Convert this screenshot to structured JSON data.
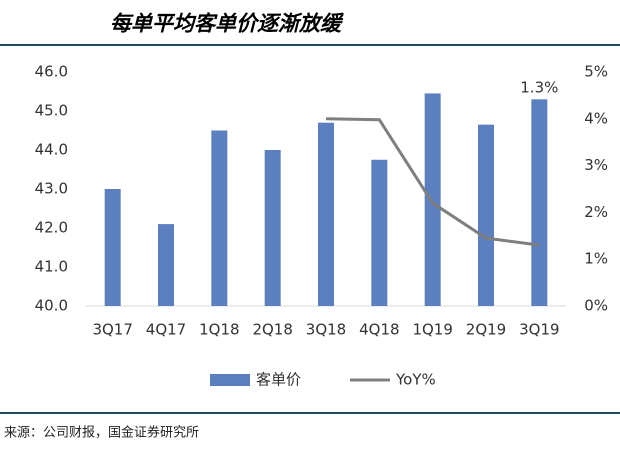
{
  "chart_data": {
    "type": "bar",
    "title": "每单平均客单价逐渐放缓",
    "source": "来源：公司财报，国金证券研究所",
    "categories": [
      "3Q17",
      "4Q17",
      "1Q18",
      "2Q18",
      "3Q18",
      "4Q18",
      "1Q19",
      "2Q19",
      "3Q19"
    ],
    "series": [
      {
        "name": "客单价",
        "type": "bar",
        "color": "#5b7fbf",
        "values": [
          43.0,
          42.1,
          44.5,
          44.0,
          44.7,
          43.75,
          45.45,
          44.65,
          45.3
        ]
      },
      {
        "name": "YoY%",
        "type": "line",
        "axis": "y2",
        "color": "#7f7f7f",
        "values": [
          null,
          null,
          null,
          null,
          4.0,
          3.98,
          2.2,
          1.45,
          1.3
        ],
        "value_labels": [
          null,
          null,
          null,
          null,
          null,
          null,
          null,
          null,
          "1.3%"
        ]
      }
    ],
    "ylim": [
      40,
      46
    ],
    "yticks": [
      {
        "value": 40,
        "label": "40.0"
      },
      {
        "value": 41,
        "label": "41.0"
      },
      {
        "value": 42,
        "label": "42.0"
      },
      {
        "value": 43,
        "label": "43.0"
      },
      {
        "value": 44,
        "label": "44.0"
      },
      {
        "value": 45,
        "label": "45.0"
      },
      {
        "value": 46,
        "label": "46.0"
      }
    ],
    "y2lim": [
      0,
      5
    ],
    "y2ticks": [
      {
        "value": 0,
        "label": "0%"
      },
      {
        "value": 1,
        "label": "1%"
      },
      {
        "value": 2,
        "label": "2%"
      },
      {
        "value": 3,
        "label": "3%"
      },
      {
        "value": 4,
        "label": "4%"
      },
      {
        "value": 5,
        "label": "5%"
      }
    ],
    "grid": false,
    "legend": "bottom"
  }
}
